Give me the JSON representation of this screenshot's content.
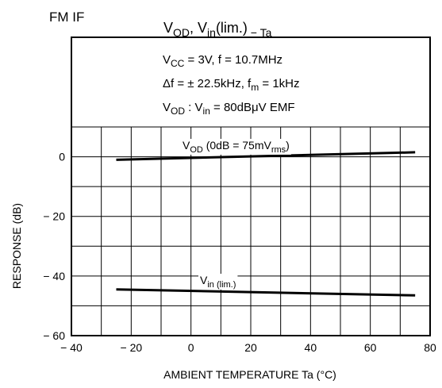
{
  "header": "FM IF",
  "chart_data": {
    "type": "line",
    "title": "V_OD, V_in(lim.) − Ta",
    "title_parts": [
      "V",
      "OD",
      ", V",
      "in",
      "(lim.)",
      " − Ta"
    ],
    "conditions": {
      "line1": [
        "V",
        "CC",
        " = 3V, f = 10.7MHz"
      ],
      "line2": [
        "Δf = ± 22.5kHz, f",
        "m",
        " = 1kHz"
      ],
      "line3": [
        "V",
        "OD",
        " : V",
        "in",
        " = 80dBμV EMF"
      ]
    },
    "xlabel": "AMBIENT TEMPERATURE   Ta   (°C)",
    "ylabel": "RESPONSE   (dB)",
    "xlim": [
      -40,
      80
    ],
    "ylim": [
      -60,
      10
    ],
    "x_ticks": [
      -40,
      -20,
      0,
      20,
      40,
      60,
      80
    ],
    "x_tick_labels": [
      "− 40",
      "− 20",
      "0",
      "20",
      "40",
      "60",
      "80"
    ],
    "y_ticks": [
      0,
      -20,
      -40,
      -60
    ],
    "y_tick_labels": [
      "0",
      "− 20",
      "− 40",
      "− 60"
    ],
    "grid": true,
    "series": [
      {
        "label_parts": [
          "V",
          "OD",
          " (0dB = 75mV",
          "rms",
          ")"
        ],
        "x": [
          -25,
          75
        ],
        "y": [
          -1,
          1.5
        ]
      },
      {
        "label_parts": [
          "V",
          "in (lim.)"
        ],
        "x": [
          -25,
          75
        ],
        "y": [
          -44.5,
          -46.5
        ]
      }
    ]
  }
}
